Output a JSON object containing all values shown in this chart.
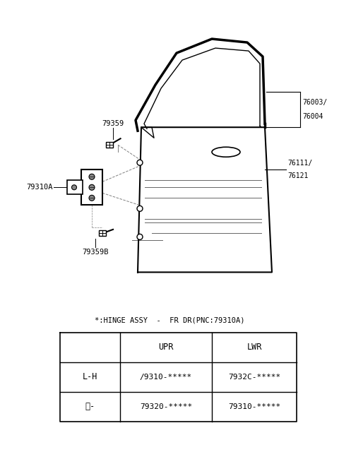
{
  "bg_color": "#ffffff",
  "table_title": "*:HINGE ASSY  -  FR DR(PNC:79310A)",
  "table_headers": [
    "",
    "UPR",
    "LWR"
  ],
  "table_rows": [
    [
      "L-H",
      "/9310-*****",
      "7932C-*****"
    ],
    [
      "田-",
      "79320-*****",
      "79310-*****"
    ]
  ],
  "fig_width": 4.8,
  "fig_height": 6.57,
  "dpi": 100
}
